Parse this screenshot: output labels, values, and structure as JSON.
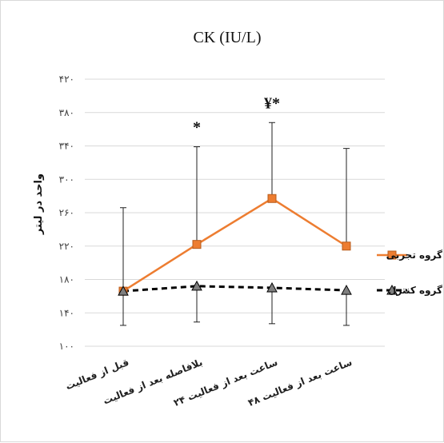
{
  "chart_data": {
    "type": "line",
    "title": "CK (IU/L)",
    "ylabel": "واحد در لیتر",
    "xlabel": "",
    "ylim": [
      100,
      420
    ],
    "yticks": [
      100,
      140,
      180,
      220,
      260,
      300,
      340,
      380,
      420
    ],
    "ytick_labels": [
      "۱۰۰",
      "۱۴۰",
      "۱۸۰",
      "۲۲۰",
      "۲۶۰",
      "۳۰۰",
      "۳۴۰",
      "۳۸۰",
      "۴۲۰"
    ],
    "grid": true,
    "legend_position": "right",
    "categories": [
      "قبل از فعالیت",
      "بلافاصله بعد از فعالیت",
      "۲۴ ساعت بعد از فعالیت",
      "۴۸ ساعت بعد از فعالیت"
    ],
    "series": [
      {
        "name": "گروه تجربی",
        "values": [
          166,
          222,
          277,
          220
        ],
        "error_upper": [
          266,
          339,
          368,
          337
        ],
        "error_lower": [
          166,
          222,
          277,
          220
        ],
        "color": "#ED7D31",
        "marker": "square",
        "line_style": "solid"
      },
      {
        "name": "گروه کنترل",
        "values": [
          166,
          172,
          170,
          167
        ],
        "error_upper": [
          166,
          172,
          170,
          167
        ],
        "error_lower": [
          125,
          129,
          127,
          125
        ],
        "color": "#000000",
        "marker": "triangle",
        "line_style": "dashed"
      }
    ],
    "annotations": [
      {
        "category_index": 1,
        "text": "*"
      },
      {
        "category_index": 2,
        "text": "¥*"
      }
    ]
  }
}
